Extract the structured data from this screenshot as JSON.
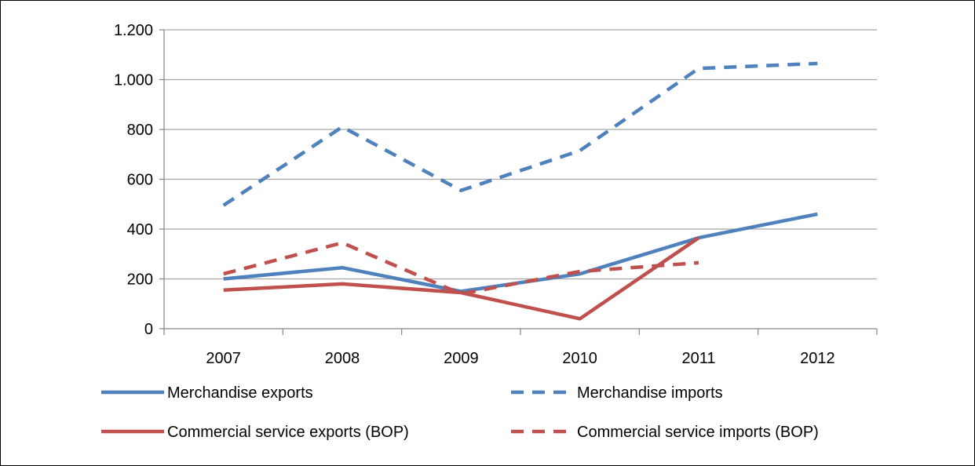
{
  "chart_data": {
    "type": "line",
    "title": "",
    "xlabel": "",
    "ylabel": "",
    "categories": [
      "2007",
      "2008",
      "2009",
      "2010",
      "2011",
      "2012"
    ],
    "ylim": [
      0,
      1200
    ],
    "yticks": [
      0,
      200,
      400,
      600,
      800,
      1000,
      1200
    ],
    "ytick_labels": [
      "0",
      "200",
      "400",
      "600",
      "800",
      "1.000",
      "1.200"
    ],
    "grid": true,
    "legend_placement": "bottom",
    "series": [
      {
        "name": "Merchandise exports",
        "color": "#4f81bd",
        "dashed": false,
        "values": [
          200,
          245,
          150,
          220,
          365,
          460
        ]
      },
      {
        "name": "Merchandise imports",
        "color": "#4f81bd",
        "dashed": true,
        "values": [
          495,
          810,
          555,
          715,
          1045,
          1065
        ]
      },
      {
        "name": "Commercial service exports (BOP)",
        "color": "#c0504d",
        "dashed": false,
        "values": [
          155,
          180,
          145,
          40,
          365,
          null
        ]
      },
      {
        "name": "Commercial service imports (BOP)",
        "color": "#c0504d",
        "dashed": true,
        "values": [
          220,
          345,
          140,
          230,
          265,
          null
        ]
      }
    ]
  }
}
